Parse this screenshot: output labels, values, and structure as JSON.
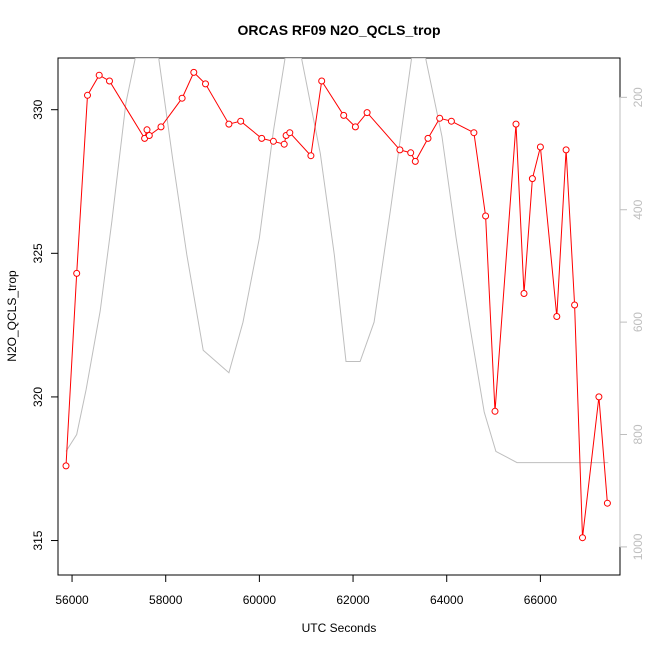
{
  "chart_data": {
    "type": "line",
    "title": "ORCAS RF09 N2O_QCLS_trop",
    "xlabel": "UTC Seconds",
    "ylabel": "N2O_QCLS_trop",
    "xlim": [
      55700,
      67700
    ],
    "ylim": [
      313.8,
      331.8
    ],
    "y2lim": [
      1050,
      130
    ],
    "x_ticks": [
      56000,
      58000,
      60000,
      62000,
      64000,
      66000
    ],
    "y_ticks": [
      315,
      320,
      325,
      330
    ],
    "y2_ticks": [
      200,
      400,
      600,
      800,
      1000
    ],
    "series": [
      {
        "color": "#ff0000",
        "axis": "left",
        "markers": "open-circle",
        "points": [
          [
            55870,
            317.6
          ],
          [
            56100,
            324.3
          ],
          [
            56330,
            330.5
          ],
          [
            56580,
            331.2
          ],
          [
            56800,
            331.0
          ],
          [
            57550,
            329.0
          ],
          [
            57600,
            329.3
          ],
          [
            57650,
            329.1
          ],
          [
            57900,
            329.4
          ],
          [
            58350,
            330.4
          ],
          [
            58600,
            331.3
          ],
          [
            58850,
            330.9
          ],
          [
            59350,
            329.5
          ],
          [
            59600,
            329.6
          ],
          [
            60050,
            329.0
          ],
          [
            60300,
            328.9
          ],
          [
            60530,
            328.8
          ],
          [
            60570,
            329.1
          ],
          [
            60650,
            329.2
          ],
          [
            61100,
            328.4
          ],
          [
            61330,
            331.0
          ],
          [
            61800,
            329.8
          ],
          [
            62050,
            329.4
          ],
          [
            62300,
            329.9
          ],
          [
            63000,
            328.6
          ],
          [
            63230,
            328.5
          ],
          [
            63330,
            328.2
          ],
          [
            63600,
            329.0
          ],
          [
            63850,
            329.7
          ],
          [
            64100,
            329.6
          ],
          [
            64580,
            329.2
          ],
          [
            64830,
            326.3
          ],
          [
            65030,
            319.5
          ],
          [
            65480,
            329.5
          ],
          [
            65650,
            323.6
          ],
          [
            65830,
            327.6
          ],
          [
            66000,
            328.7
          ],
          [
            66350,
            322.8
          ],
          [
            66550,
            328.6
          ],
          [
            66730,
            323.2
          ],
          [
            66900,
            315.1
          ],
          [
            67250,
            320.0
          ],
          [
            67430,
            316.3
          ]
        ]
      },
      {
        "color": "#bebebe",
        "axis": "right",
        "markers": "none",
        "points": [
          [
            55870,
            830
          ],
          [
            56100,
            800
          ],
          [
            56300,
            720
          ],
          [
            56600,
            580
          ],
          [
            56850,
            420
          ],
          [
            57150,
            210
          ],
          [
            57350,
            130
          ],
          [
            57850,
            130
          ],
          [
            58150,
            310
          ],
          [
            58450,
            480
          ],
          [
            58800,
            650
          ],
          [
            59350,
            690
          ],
          [
            59650,
            600
          ],
          [
            60000,
            450
          ],
          [
            60300,
            260
          ],
          [
            60550,
            130
          ],
          [
            60900,
            130
          ],
          [
            61300,
            300
          ],
          [
            61600,
            480
          ],
          [
            61850,
            670
          ],
          [
            62150,
            670
          ],
          [
            62450,
            600
          ],
          [
            62800,
            400
          ],
          [
            63050,
            250
          ],
          [
            63250,
            130
          ],
          [
            63550,
            130
          ],
          [
            63900,
            270
          ],
          [
            64200,
            450
          ],
          [
            64500,
            610
          ],
          [
            64800,
            760
          ],
          [
            65050,
            830
          ],
          [
            65500,
            850
          ],
          [
            67450,
            850
          ]
        ]
      }
    ]
  }
}
